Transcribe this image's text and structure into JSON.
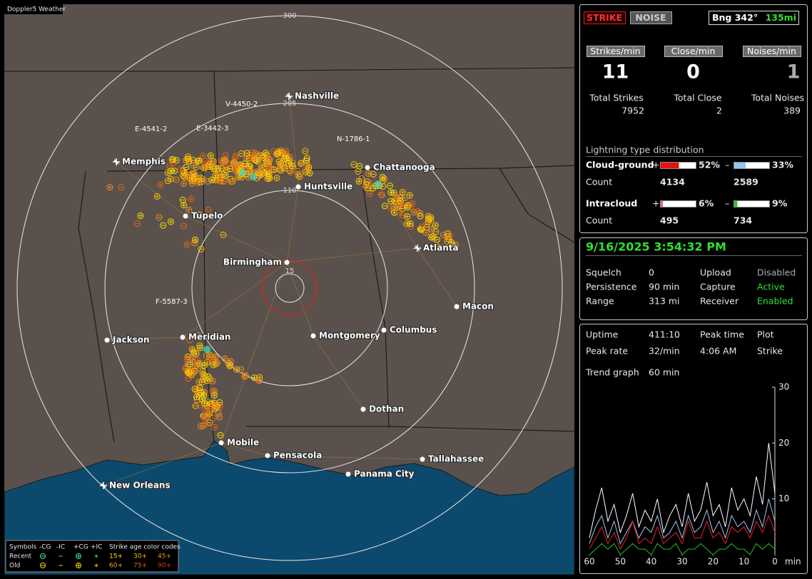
{
  "map": {
    "title": "Doppler5 Weather",
    "ring_labels": [
      "300",
      "205",
      "110",
      "15"
    ],
    "cities": [
      "Nashville",
      "Memphis",
      "Chattanooga",
      "Huntsville",
      "Tupelo",
      "Atlanta",
      "Birmingham",
      "Macon",
      "Jackson",
      "Meridian",
      "Montgomery",
      "Columbus",
      "Dothan",
      "Mobile",
      "Pensacola",
      "Tallahassee",
      "Panama City",
      "New Orleans"
    ],
    "storm_labels": [
      "V-4450-2",
      "E-4541-2",
      "E-3442-3",
      "N-1786-1",
      "F-5587-3"
    ],
    "legend": {
      "symbols_title": "Symbols",
      "symbols": [
        "-CG",
        "-IC",
        "+CG",
        "+IC"
      ],
      "age_title": "Strike age color codes",
      "rows": [
        "Recent",
        "Old"
      ],
      "recent_ages": [
        "15+",
        "30+",
        "45+"
      ],
      "old_ages": [
        "60+",
        "75+",
        "90+"
      ]
    }
  },
  "status": {
    "strike_button": "STRIKE",
    "noise_button": "NOISE",
    "bearing": "Bng 342°",
    "distance": "135mi"
  },
  "rates": [
    {
      "label": "Strikes/min",
      "value": 11,
      "total_label": "Total Strikes",
      "total": 7952
    },
    {
      "label": "Close/min",
      "value": 0,
      "total_label": "Total Close",
      "total": 2
    },
    {
      "label": "Noises/min",
      "value": 1,
      "total_label": "Total Noises",
      "total": 389
    }
  ],
  "distribution": {
    "title": "Lightning type distribution",
    "rows": [
      {
        "name": "Cloud-ground",
        "plus": "+",
        "plus_percent": 52,
        "plus_label": "52%",
        "minus": "–",
        "minus_percent": 33,
        "minus_label": "33%",
        "count_label": "Count",
        "plus_count": 4134,
        "minus_count": 2589
      },
      {
        "name": "Intracloud",
        "plus": "+",
        "plus_percent": 6,
        "plus_label": "6%",
        "minus": "–",
        "minus_percent": 9,
        "minus_label": "9%",
        "count_label": "Count",
        "plus_count": 495,
        "minus_count": 734
      }
    ]
  },
  "clock": {
    "datetime": "9/16/2025 3:54:32 PM",
    "rows": [
      [
        "Squelch",
        "0",
        "Upload",
        "Disabled"
      ],
      [
        "Persistence",
        "90 min",
        "Capture",
        "Active"
      ],
      [
        "Range",
        "313 mi",
        "Receiver",
        "Enabled"
      ]
    ]
  },
  "stats": {
    "rows": [
      [
        "Uptime",
        "411:10",
        "Peak time",
        "Plot"
      ],
      [
        "Peak rate",
        "32/min",
        "4:06 AM",
        "Strike"
      ],
      [
        "Trend graph",
        "60 min"
      ]
    ]
  },
  "trend": {
    "type": "line",
    "x_label": "min",
    "xlim": [
      60,
      0
    ],
    "xticks": [
      60,
      50,
      40,
      30,
      20,
      10,
      0
    ],
    "ylim": [
      0,
      30
    ],
    "yticks": [
      10,
      20,
      30
    ],
    "x": [
      60,
      58,
      56,
      54,
      52,
      50,
      48,
      46,
      44,
      42,
      40,
      38,
      36,
      34,
      32,
      30,
      28,
      26,
      24,
      22,
      20,
      18,
      16,
      14,
      12,
      10,
      8,
      6,
      4,
      2,
      0
    ],
    "series": [
      {
        "color": "#ffffff",
        "values": [
          3,
          8,
          12,
          6,
          9,
          4,
          7,
          11,
          5,
          8,
          6,
          10,
          4,
          7,
          9,
          5,
          11,
          6,
          8,
          13,
          7,
          9,
          5,
          12,
          8,
          10,
          7,
          14,
          9,
          20,
          11
        ]
      },
      {
        "color": "#9fc8ee",
        "values": [
          2,
          5,
          7,
          3,
          6,
          2,
          4,
          6,
          3,
          5,
          4,
          7,
          3,
          4,
          6,
          3,
          7,
          4,
          5,
          8,
          4,
          6,
          3,
          7,
          5,
          6,
          4,
          8,
          5,
          10,
          6
        ]
      },
      {
        "color": "#e8202a",
        "values": [
          1,
          3,
          5,
          2,
          4,
          1,
          3,
          6,
          2,
          3,
          2,
          5,
          2,
          3,
          4,
          2,
          6,
          3,
          3,
          6,
          3,
          4,
          2,
          5,
          4,
          5,
          3,
          6,
          4,
          7,
          4
        ]
      },
      {
        "color": "#20c020",
        "values": [
          0,
          1,
          2,
          1,
          2,
          0,
          1,
          2,
          1,
          1,
          0,
          2,
          1,
          1,
          2,
          0,
          1,
          1,
          2,
          1,
          0,
          1,
          1,
          2,
          1,
          1,
          0,
          2,
          1,
          2,
          1
        ]
      }
    ]
  }
}
